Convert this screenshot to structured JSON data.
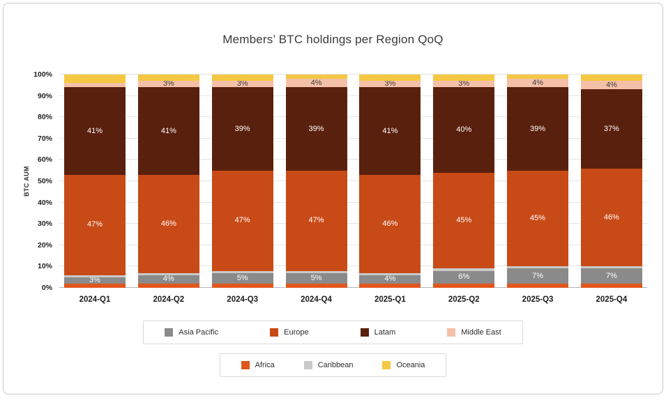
{
  "title": "Members’ BTC holdings per Region QoQ",
  "chart_data": {
    "type": "bar",
    "stacked": true,
    "title": "Members’ BTC holdings per Region QoQ",
    "xlabel": "",
    "ylabel": "BTC AUM",
    "ylim": [
      0,
      100
    ],
    "ytick_step": 10,
    "ytick_suffix": "%",
    "grid": true,
    "legend_position": "bottom",
    "categories": [
      "2024-Q1",
      "2024-Q2",
      "2024-Q3",
      "2024-Q4",
      "2025-Q1",
      "2025-Q2",
      "2025-Q3",
      "2025-Q4"
    ],
    "series": [
      {
        "name": "Africa",
        "color": "#e0561c",
        "label_color": "#ffffff",
        "values": [
          2,
          2,
          2,
          2,
          2,
          2,
          2,
          2
        ],
        "labels": [
          "",
          "",
          "",
          "",
          "",
          "",
          "",
          ""
        ]
      },
      {
        "name": "Asia Pacific",
        "color": "#8a8a8a",
        "label_color": "#ffffff",
        "values": [
          3,
          4,
          5,
          5,
          4,
          6,
          7,
          7
        ],
        "labels": [
          "3%",
          "4%",
          "5%",
          "5%",
          "4%",
          "6%",
          "7%",
          "7%"
        ]
      },
      {
        "name": "Caribbean",
        "color": "#c9c9c9",
        "label_color": "#ffffff",
        "values": [
          1,
          1,
          1,
          1,
          1,
          1,
          1,
          1
        ],
        "labels": [
          "",
          "",
          "",
          "",
          "",
          "",
          "",
          ""
        ]
      },
      {
        "name": "Europe",
        "color": "#c84a17",
        "label_color": "#ffffff",
        "values": [
          47,
          46,
          47,
          47,
          46,
          45,
          45,
          46
        ],
        "labels": [
          "47%",
          "46%",
          "47%",
          "47%",
          "46%",
          "45%",
          "45%",
          "46%"
        ]
      },
      {
        "name": "Latam",
        "color": "#5a200e",
        "label_color": "#ffffff",
        "values": [
          41,
          41,
          39,
          39,
          41,
          40,
          39,
          37
        ],
        "labels": [
          "41%",
          "41%",
          "39%",
          "39%",
          "41%",
          "40%",
          "39%",
          "37%"
        ]
      },
      {
        "name": "Middle East",
        "color": "#f4c0a8",
        "label_color": "#3d3d3d",
        "values": [
          2,
          3,
          3,
          4,
          3,
          3,
          4,
          4
        ],
        "labels": [
          "",
          "3%",
          "3%",
          "4%",
          "3%",
          "3%",
          "4%",
          "4%"
        ]
      },
      {
        "name": "Oceania",
        "color": "#f5c843",
        "label_color": "#3d3d3d",
        "values": [
          4,
          3,
          3,
          2,
          3,
          3,
          2,
          3
        ],
        "labels": [
          "",
          "",
          "",
          "",
          "",
          "",
          "",
          ""
        ]
      }
    ],
    "legend_rows": [
      [
        "Asia Pacific",
        "Europe",
        "Latam",
        "Middle East"
      ],
      [
        "Africa",
        "Caribbean",
        "Oceania"
      ]
    ]
  }
}
